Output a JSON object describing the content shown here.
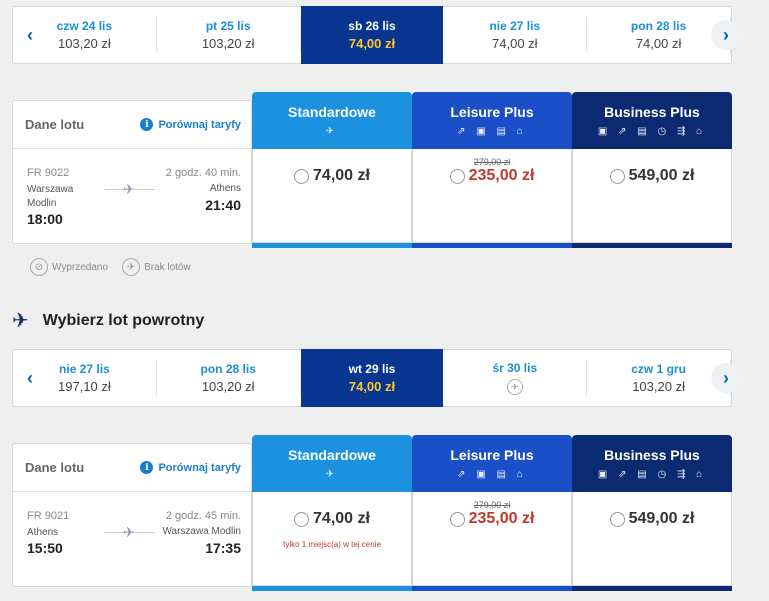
{
  "outbound": {
    "dates": [
      {
        "day": "czw 24 lis",
        "price": "103,20 zł"
      },
      {
        "day": "pt 25 lis",
        "price": "103,20 zł"
      },
      {
        "day": "sb 26 lis",
        "price": "74,00 zł",
        "selected": true
      },
      {
        "day": "nie 27 lis",
        "price": "74,00 zł"
      },
      {
        "day": "pon 28 lis",
        "price": "74,00 zł"
      }
    ],
    "flight": {
      "header": "Dane lotu",
      "compare": "Porównaj taryfy",
      "number": "FR 9022",
      "duration": "2 godz. 40 min.",
      "from": "Warszawa Modlin",
      "to": "Athens",
      "departure": "18:00",
      "arrival": "21:40"
    },
    "fares": [
      {
        "name": "Standardowe",
        "old": "",
        "price": "74,00 zł",
        "note": ""
      },
      {
        "name": "Leisure Plus",
        "old": "279,00 zł",
        "price": "235,00 zł",
        "note": ""
      },
      {
        "name": "Business Plus",
        "old": "",
        "price": "549,00 zł",
        "note": ""
      }
    ]
  },
  "legend": {
    "sold": "Wyprzedano",
    "noflights": "Brak lotów"
  },
  "return_title": "Wybierz lot powrotny",
  "inbound": {
    "dates": [
      {
        "day": "nie 27 lis",
        "price": "197,10 zł"
      },
      {
        "day": "pon 28 lis",
        "price": "103,20 zł"
      },
      {
        "day": "wt 29 lis",
        "price": "74,00 zł",
        "selected": true
      },
      {
        "day": "śr 30 lis",
        "price": ""
      },
      {
        "day": "czw 1 gru",
        "price": "103,20 zł"
      }
    ],
    "flight": {
      "header": "Dane lotu",
      "compare": "Porównaj taryfy",
      "number": "FR 9021",
      "duration": "2 godz. 45 min.",
      "from": "Athens",
      "to": "Warszawa Modlin",
      "departure": "15:50",
      "arrival": "17:35"
    },
    "fares": [
      {
        "name": "Standardowe",
        "old": "",
        "price": "74,00 zł",
        "note": "tylko 1 miejsc(a) w tej cenie"
      },
      {
        "name": "Leisure Plus",
        "old": "279,00 zł",
        "price": "235,00 zł",
        "note": ""
      },
      {
        "name": "Business Plus",
        "old": "",
        "price": "549,00 zł",
        "note": ""
      }
    ]
  },
  "colors": {
    "accent": "#1a8fd3",
    "selected": "#073590",
    "price_selected": "#ffc72c",
    "discount": "#c0392b"
  }
}
